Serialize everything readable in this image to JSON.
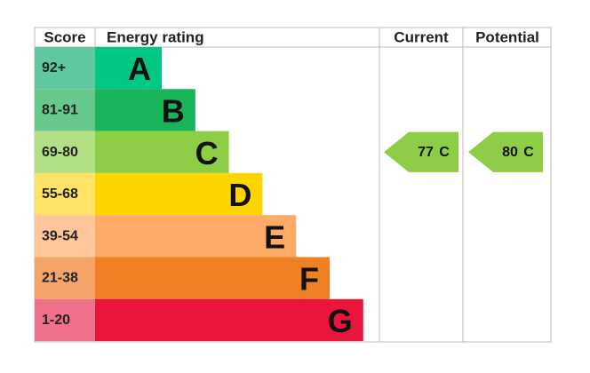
{
  "header": {
    "score": "Score",
    "rating": "Energy rating",
    "current": "Current",
    "potential": "Potential"
  },
  "rows": [
    {
      "score": "92+",
      "band": "A",
      "color": "#00c781",
      "score_color": "#5fc8a1"
    },
    {
      "score": "81-91",
      "band": "B",
      "color": "#19b459",
      "score_color": "#66c88a"
    },
    {
      "score": "69-80",
      "band": "C",
      "color": "#8dce46",
      "score_color": "#b3df85"
    },
    {
      "score": "55-68",
      "band": "D",
      "color": "#ffd500",
      "score_color": "#ffe266"
    },
    {
      "score": "39-54",
      "band": "E",
      "color": "#fcaa65",
      "score_color": "#fdc79b"
    },
    {
      "score": "21-38",
      "band": "F",
      "color": "#ef8023",
      "score_color": "#f5a56a"
    },
    {
      "score": "1-20",
      "band": "G",
      "color": "#e9153b",
      "score_color": "#f0728a"
    }
  ],
  "current": {
    "score": 77,
    "band": "C"
  },
  "potential": {
    "score": 80,
    "band": "C"
  }
}
